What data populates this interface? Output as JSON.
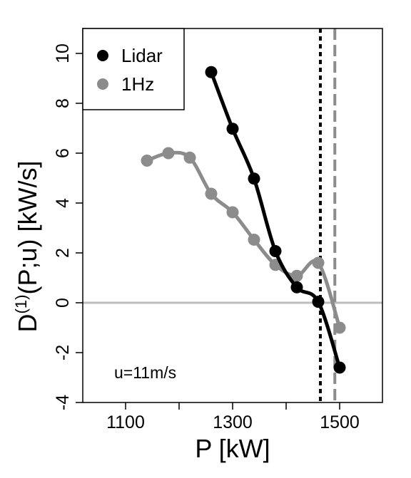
{
  "chart_data": {
    "type": "line",
    "xlabel": "P [kW]",
    "ylabel": {
      "prefix": "D",
      "superscript": "(1)",
      "suffix": "(P;u) [kW/s]"
    },
    "xlim": [
      1020,
      1580
    ],
    "ylim": [
      -4,
      11
    ],
    "xticks": [
      1100,
      1200,
      1300,
      1400,
      1500
    ],
    "xtick_labels": [
      "1100",
      "",
      "1300",
      "",
      "1500"
    ],
    "yticks": [
      -4,
      -2,
      0,
      2,
      4,
      6,
      8,
      10
    ],
    "ytick_labels": [
      "-4",
      "-2",
      "0",
      "2",
      "4",
      "6",
      "8",
      "10"
    ],
    "grid": false,
    "legend_position": "top-left",
    "annotation": "u=11m/s",
    "reference_lines": {
      "horizontal": {
        "y": 0,
        "color": "#bdbdbd"
      },
      "vertical": [
        {
          "x": 1464,
          "style": "dotted",
          "color": "#000000"
        },
        {
          "x": 1491,
          "style": "dashed",
          "color": "#8c8c8c"
        }
      ]
    },
    "series": [
      {
        "name": "Lidar",
        "color": "#000000",
        "points": [
          {
            "x": 1260,
            "y": 9.25
          },
          {
            "x": 1300,
            "y": 6.98
          },
          {
            "x": 1340,
            "y": 4.98
          },
          {
            "x": 1380,
            "y": 2.07
          },
          {
            "x": 1420,
            "y": 0.62
          },
          {
            "x": 1460,
            "y": 0.04
          },
          {
            "x": 1500,
            "y": -2.6
          }
        ]
      },
      {
        "name": "1Hz",
        "color": "#8c8c8c",
        "points": [
          {
            "x": 1140,
            "y": 5.7
          },
          {
            "x": 1180,
            "y": 6.0
          },
          {
            "x": 1220,
            "y": 5.82
          },
          {
            "x": 1260,
            "y": 4.37
          },
          {
            "x": 1300,
            "y": 3.63
          },
          {
            "x": 1340,
            "y": 2.53
          },
          {
            "x": 1380,
            "y": 1.52
          },
          {
            "x": 1420,
            "y": 1.08
          },
          {
            "x": 1460,
            "y": 1.6
          },
          {
            "x": 1500,
            "y": -1.0
          }
        ]
      }
    ]
  }
}
